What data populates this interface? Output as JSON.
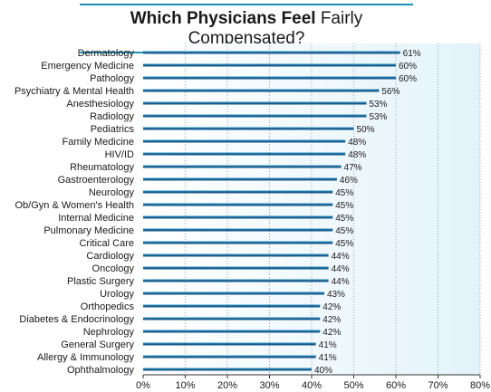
{
  "title": {
    "bold": "Which Physicians Feel",
    "rest": "Fairly Compensated?"
  },
  "colors": {
    "bar": "#1a5a8a",
    "bar_highlight": "#2fa6d8",
    "plot_background": "#eaf6fc",
    "grid": "#9aa9b0",
    "title_rule": "#1f8fb8"
  },
  "chart_data": {
    "type": "bar",
    "orientation": "horizontal",
    "title": "Which Physicians Feel Fairly Compensated?",
    "categories": [
      "Dermatology",
      "Emergency Medicine",
      "Pathology",
      "Psychiatry & Mental Health",
      "Anesthesiology",
      "Radiology",
      "Pediatrics",
      "Family Medicine",
      "HIV/ID",
      "Rheumatology",
      "Gastroenterology",
      "Neurology",
      "Ob/Gyn & Women's Health",
      "Internal Medicine",
      "Pulmonary Medicine",
      "Critical Care",
      "Cardiology",
      "Oncology",
      "Plastic Surgery",
      "Urology",
      "Orthopedics",
      "Diabetes & Endocrinology",
      "Nephrology",
      "General Surgery",
      "Allergy & Immunology",
      "Ophthalmology"
    ],
    "values": [
      61,
      60,
      60,
      56,
      53,
      53,
      50,
      48,
      48,
      47,
      46,
      45,
      45,
      45,
      45,
      45,
      44,
      44,
      44,
      43,
      42,
      42,
      42,
      41,
      41,
      40
    ],
    "value_labels": [
      "61%",
      "60%",
      "60%",
      "56%",
      "53%",
      "53%",
      "50%",
      "48%",
      "48%",
      "47%",
      "46%",
      "45%",
      "45%",
      "45%",
      "45%",
      "45%",
      "44%",
      "44%",
      "44%",
      "43%",
      "42%",
      "42%",
      "42%",
      "41%",
      "41%",
      "40%"
    ],
    "x_ticks": [
      "0%",
      "10%",
      "20%",
      "30%",
      "40%",
      "50%",
      "60%",
      "70%",
      "80%"
    ],
    "xlim": [
      0,
      80
    ],
    "grid": true,
    "legend": "none"
  }
}
